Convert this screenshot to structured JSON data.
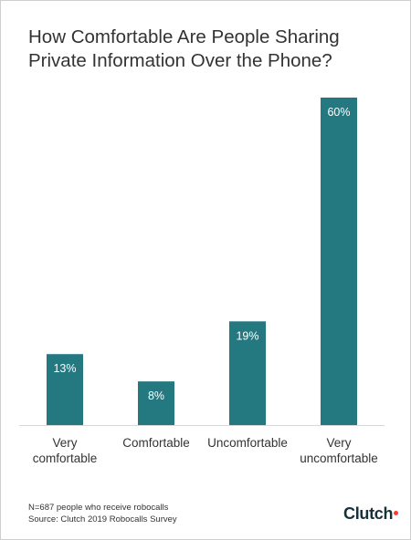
{
  "title_lines": [
    "How Comfortable Are People Sharing",
    "Private Information Over the Phone?"
  ],
  "chart_data": {
    "type": "bar",
    "title": "How Comfortable Are People Sharing Private Information Over the Phone?",
    "categories": [
      [
        "Very",
        "comfortable"
      ],
      [
        "Comfortable"
      ],
      [
        "Uncomfortable"
      ],
      [
        "Very",
        "uncomfortable"
      ]
    ],
    "values": [
      13,
      8,
      19,
      60
    ],
    "value_labels": [
      "13%",
      "8%",
      "19%",
      "60%"
    ],
    "ylim": [
      0,
      60
    ],
    "grid": false,
    "bar_color": "#247880",
    "value_label_color": "#ffffff"
  },
  "footnote": {
    "sample": "N=687 people who receive robocalls",
    "source": "Source: Clutch 2019 Robocalls Survey"
  },
  "brand": {
    "name": "Clutch",
    "dot_color": "#ff3d2e"
  }
}
